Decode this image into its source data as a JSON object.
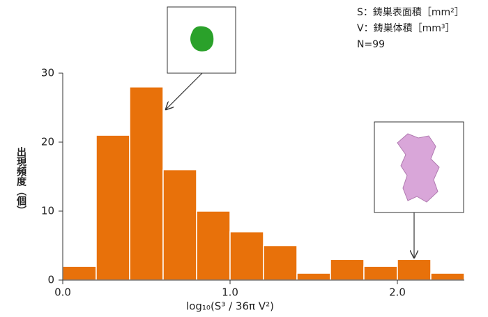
{
  "chart_data": {
    "type": "histogram",
    "bins": [
      0,
      0.2,
      0.4,
      0.6,
      0.8,
      1.0,
      1.2,
      1.4,
      1.6,
      1.8,
      2.0,
      2.2,
      2.4
    ],
    "values": [
      2,
      21,
      28,
      16,
      10,
      7,
      5,
      1,
      3,
      2,
      3,
      1
    ],
    "color": "#e8710a",
    "xlim": [
      0,
      2.4
    ],
    "ylim": [
      0,
      30
    ],
    "xticks": [
      {
        "value": 0,
        "label": "0.0"
      },
      {
        "value": 1,
        "label": "1.0"
      },
      {
        "value": 2,
        "label": "2.0"
      }
    ],
    "yticks": [
      0,
      10,
      20,
      30
    ],
    "x_label": "log₁₀(S³ / 36π V²)",
    "y_label": "出現頻度（個）",
    "annotations": [
      "S：鋳巣表面積［mm²］",
      "V：鋳巣体積［mm³］",
      "N=99"
    ]
  }
}
